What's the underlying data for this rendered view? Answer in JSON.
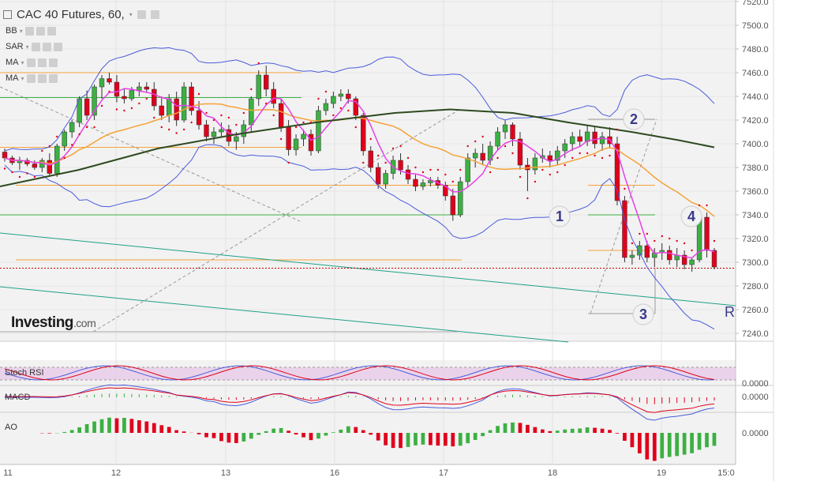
{
  "header": {
    "title": "CAC 40 Futures, 60,",
    "dropdown_caret": "▾"
  },
  "indicators": [
    {
      "label": "BB"
    },
    {
      "label": "SAR"
    },
    {
      "label": "MA"
    },
    {
      "label": "MA"
    }
  ],
  "brand": {
    "main": "Investing",
    "suffix": ".com"
  },
  "colors": {
    "up": "#3cb043",
    "down": "#e0001b",
    "bollinger": "#4a5bdc",
    "sar": "#e0001b",
    "ma_fast": "#e641e6",
    "ma_mid": "#f5a339",
    "ma_slow": "#2e4a1f",
    "horizontal": "#f5a339",
    "green_level": "#3cb043",
    "trend": "#1ea088",
    "current_price": "#c00000"
  },
  "chart_data": [
    {
      "type": "candlestick",
      "title": "CAC 40 Futures, 60,",
      "ylim": [
        7235,
        7525
      ],
      "y_ticks": [
        "7520.0",
        "7500.0",
        "7480.0",
        "7460.0",
        "7440.0",
        "7420.0",
        "7400.0",
        "7380.0",
        "7360.0",
        "7340.0",
        "7320.0",
        "7300.0",
        "7280.0",
        "7260.0",
        "7240.0"
      ],
      "x_ticks": [
        "11",
        "12",
        "13",
        "16",
        "17",
        "18",
        "19",
        "15:0"
      ],
      "annotations": [
        "1",
        "2",
        "3",
        "4",
        "R"
      ],
      "levels": [
        7460,
        7397,
        7365,
        7340,
        7302
      ],
      "current_price": 7295,
      "candles": [
        [
          7393,
          7396,
          7385,
          7388
        ],
        [
          7388,
          7390,
          7382,
          7384
        ],
        [
          7384,
          7389,
          7378,
          7386
        ],
        [
          7386,
          7388,
          7381,
          7383
        ],
        [
          7383,
          7386,
          7378,
          7380
        ],
        [
          7380,
          7388,
          7376,
          7386
        ],
        [
          7386,
          7392,
          7373,
          7375
        ],
        [
          7375,
          7400,
          7372,
          7398
        ],
        [
          7398,
          7412,
          7394,
          7410
        ],
        [
          7410,
          7420,
          7405,
          7418
        ],
        [
          7418,
          7440,
          7414,
          7438
        ],
        [
          7438,
          7445,
          7420,
          7424
        ],
        [
          7424,
          7450,
          7420,
          7448
        ],
        [
          7448,
          7458,
          7438,
          7455
        ],
        [
          7455,
          7460,
          7450,
          7452
        ],
        [
          7452,
          7458,
          7435,
          7440
        ],
        [
          7440,
          7446,
          7434,
          7438
        ],
        [
          7438,
          7448,
          7436,
          7445
        ],
        [
          7445,
          7452,
          7440,
          7448
        ],
        [
          7448,
          7452,
          7444,
          7446
        ],
        [
          7446,
          7452,
          7428,
          7432
        ],
        [
          7432,
          7440,
          7420,
          7424
        ],
        [
          7424,
          7442,
          7418,
          7438
        ],
        [
          7438,
          7444,
          7415,
          7420
        ],
        [
          7420,
          7452,
          7418,
          7448
        ],
        [
          7448,
          7452,
          7424,
          7428
        ],
        [
          7428,
          7436,
          7412,
          7416
        ],
        [
          7416,
          7420,
          7402,
          7406
        ],
        [
          7406,
          7414,
          7400,
          7410
        ],
        [
          7410,
          7418,
          7405,
          7412
        ],
        [
          7412,
          7416,
          7398,
          7402
        ],
        [
          7402,
          7410,
          7395,
          7406
        ],
        [
          7406,
          7420,
          7400,
          7416
        ],
        [
          7416,
          7440,
          7410,
          7438
        ],
        [
          7438,
          7462,
          7432,
          7458
        ],
        [
          7458,
          7466,
          7440,
          7446
        ],
        [
          7446,
          7452,
          7430,
          7434
        ],
        [
          7434,
          7438,
          7410,
          7414
        ],
        [
          7414,
          7420,
          7390,
          7395
        ],
        [
          7395,
          7408,
          7390,
          7404
        ],
        [
          7404,
          7412,
          7398,
          7408
        ],
        [
          7408,
          7412,
          7390,
          7394
        ],
        [
          7394,
          7432,
          7392,
          7428
        ],
        [
          7428,
          7438,
          7424,
          7434
        ],
        [
          7434,
          7444,
          7430,
          7440
        ],
        [
          7440,
          7446,
          7436,
          7442
        ],
        [
          7442,
          7446,
          7434,
          7438
        ],
        [
          7438,
          7440,
          7420,
          7424
        ],
        [
          7424,
          7426,
          7390,
          7394
        ],
        [
          7394,
          7398,
          7376,
          7380
        ],
        [
          7380,
          7384,
          7362,
          7366
        ],
        [
          7366,
          7378,
          7362,
          7375
        ],
        [
          7375,
          7390,
          7370,
          7386
        ],
        [
          7386,
          7392,
          7374,
          7378
        ],
        [
          7378,
          7382,
          7366,
          7370
        ],
        [
          7370,
          7374,
          7360,
          7364
        ],
        [
          7364,
          7370,
          7361,
          7367
        ],
        [
          7367,
          7372,
          7364,
          7369
        ],
        [
          7369,
          7372,
          7362,
          7365
        ],
        [
          7365,
          7368,
          7352,
          7356
        ],
        [
          7356,
          7362,
          7335,
          7340
        ],
        [
          7340,
          7372,
          7338,
          7368
        ],
        [
          7368,
          7392,
          7364,
          7388
        ],
        [
          7388,
          7396,
          7380,
          7392
        ],
        [
          7392,
          7400,
          7382,
          7386
        ],
        [
          7386,
          7402,
          7382,
          7398
        ],
        [
          7398,
          7414,
          7394,
          7410
        ],
        [
          7410,
          7420,
          7404,
          7416
        ],
        [
          7416,
          7418,
          7398,
          7404
        ],
        [
          7404,
          7410,
          7378,
          7382
        ],
        [
          7382,
          7388,
          7360,
          7378
        ],
        [
          7378,
          7392,
          7374,
          7388
        ],
        [
          7388,
          7396,
          7384,
          7390
        ],
        [
          7390,
          7394,
          7380,
          7386
        ],
        [
          7386,
          7398,
          7382,
          7394
        ],
        [
          7394,
          7404,
          7388,
          7400
        ],
        [
          7400,
          7410,
          7394,
          7406
        ],
        [
          7406,
          7412,
          7398,
          7402
        ],
        [
          7402,
          7416,
          7398,
          7410
        ],
        [
          7410,
          7414,
          7396,
          7400
        ],
        [
          7400,
          7410,
          7394,
          7406
        ],
        [
          7406,
          7414,
          7396,
          7400
        ],
        [
          7400,
          7406,
          7348,
          7352
        ],
        [
          7352,
          7356,
          7300,
          7304
        ],
        [
          7304,
          7310,
          7298,
          7306
        ],
        [
          7306,
          7318,
          7302,
          7314
        ],
        [
          7314,
          7318,
          7300,
          7304
        ],
        [
          7304,
          7312,
          7296,
          7308
        ],
        [
          7308,
          7316,
          7302,
          7310
        ],
        [
          7310,
          7314,
          7298,
          7302
        ],
        [
          7302,
          7312,
          7296,
          7306
        ],
        [
          7306,
          7310,
          7294,
          7298
        ],
        [
          7298,
          7304,
          7292,
          7302
        ],
        [
          7302,
          7342,
          7300,
          7338
        ],
        [
          7338,
          7342,
          7304,
          7310
        ],
        [
          7310,
          7312,
          7294,
          7296
        ]
      ]
    },
    {
      "type": "line",
      "title": "Stoch RSI",
      "y_ticks": [
        "0.0000"
      ]
    },
    {
      "type": "line",
      "title": "MACD",
      "y_ticks": [
        "0.0000"
      ]
    },
    {
      "type": "bar",
      "title": "AO",
      "y_ticks": [
        "0.0000"
      ]
    }
  ]
}
